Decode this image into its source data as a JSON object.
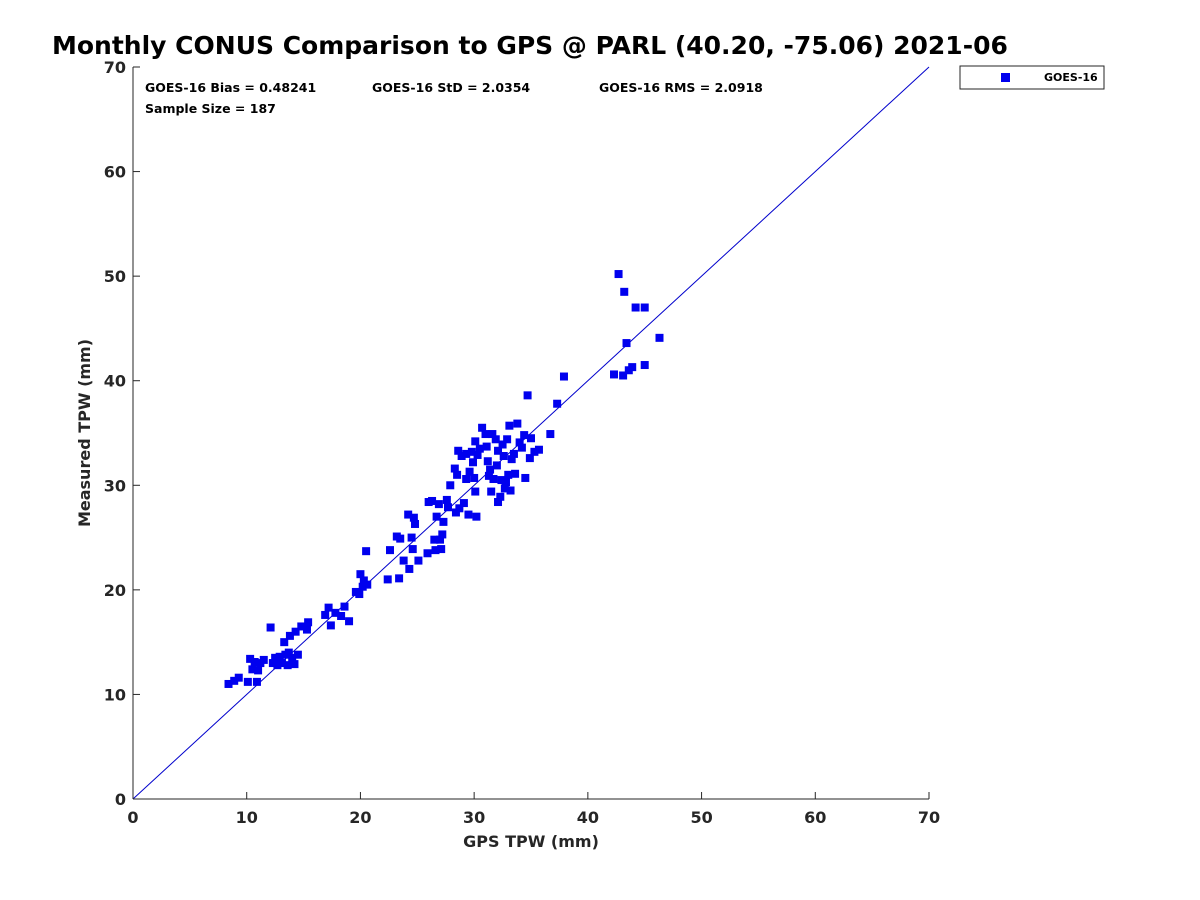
{
  "chart_data": {
    "type": "scatter",
    "title": "Monthly CONUS Comparison to GPS @ PARL (40.20, -75.06) 2021-06",
    "xlabel": "GPS TPW (mm)",
    "ylabel": "Measured TPW (mm)",
    "xlim": [
      0,
      70
    ],
    "ylim": [
      0,
      70
    ],
    "xticks": [
      "0",
      "10",
      "20",
      "30",
      "40",
      "50",
      "60",
      "70"
    ],
    "yticks": [
      "0",
      "10",
      "20",
      "30",
      "40",
      "50",
      "60",
      "70"
    ],
    "grid": false,
    "legend_position": "outside-top-right",
    "stats": {
      "bias": "GOES-16 Bias = 0.48241",
      "std": "GOES-16 StD = 2.0354",
      "rms": "GOES-16 RMS = 2.0918",
      "sample": "Sample Size = 187"
    },
    "reference_line": {
      "x": [
        0,
        70
      ],
      "y": [
        0,
        70
      ],
      "color": "#0000cc"
    },
    "series": [
      {
        "name": "GOES-16",
        "color": "#0000ee",
        "marker": "square",
        "points": [
          [
            8.4,
            11.0
          ],
          [
            8.9,
            11.3
          ],
          [
            9.3,
            11.6
          ],
          [
            10.1,
            11.2
          ],
          [
            10.3,
            13.4
          ],
          [
            10.5,
            12.4
          ],
          [
            10.7,
            13.1
          ],
          [
            10.9,
            11.2
          ],
          [
            11.0,
            12.3
          ],
          [
            11.2,
            13.0
          ],
          [
            11.5,
            13.3
          ],
          [
            12.1,
            16.4
          ],
          [
            12.3,
            13.0
          ],
          [
            12.5,
            13.5
          ],
          [
            12.7,
            12.8
          ],
          [
            12.9,
            13.6
          ],
          [
            13.1,
            13.0
          ],
          [
            13.3,
            15.0
          ],
          [
            13.4,
            13.8
          ],
          [
            13.6,
            12.8
          ],
          [
            13.7,
            14.0
          ],
          [
            13.8,
            15.6
          ],
          [
            14.0,
            13.5
          ],
          [
            14.2,
            12.9
          ],
          [
            14.3,
            16.0
          ],
          [
            14.5,
            13.8
          ],
          [
            14.8,
            16.5
          ],
          [
            15.3,
            16.2
          ],
          [
            15.4,
            16.9
          ],
          [
            16.9,
            17.6
          ],
          [
            17.2,
            18.3
          ],
          [
            17.4,
            16.6
          ],
          [
            17.8,
            17.8
          ],
          [
            18.3,
            17.5
          ],
          [
            18.6,
            18.4
          ],
          [
            19.0,
            17.0
          ],
          [
            19.6,
            19.8
          ],
          [
            19.9,
            19.6
          ],
          [
            20.0,
            21.5
          ],
          [
            20.2,
            20.3
          ],
          [
            20.3,
            20.9
          ],
          [
            20.5,
            23.7
          ],
          [
            20.6,
            20.5
          ],
          [
            22.4,
            21.0
          ],
          [
            22.6,
            23.8
          ],
          [
            23.2,
            25.1
          ],
          [
            23.4,
            21.1
          ],
          [
            23.5,
            24.9
          ],
          [
            23.8,
            22.8
          ],
          [
            24.2,
            27.2
          ],
          [
            24.3,
            22.0
          ],
          [
            24.5,
            25.0
          ],
          [
            24.6,
            23.9
          ],
          [
            24.7,
            26.9
          ],
          [
            24.8,
            26.3
          ],
          [
            25.1,
            22.8
          ],
          [
            25.9,
            23.5
          ],
          [
            26.0,
            28.4
          ],
          [
            26.3,
            28.5
          ],
          [
            26.5,
            24.8
          ],
          [
            26.6,
            23.8
          ],
          [
            26.7,
            27.0
          ],
          [
            26.9,
            28.2
          ],
          [
            27.0,
            24.8
          ],
          [
            27.1,
            23.9
          ],
          [
            27.2,
            25.3
          ],
          [
            27.3,
            26.5
          ],
          [
            27.6,
            28.6
          ],
          [
            27.7,
            27.9
          ],
          [
            27.9,
            30.0
          ],
          [
            28.3,
            31.6
          ],
          [
            28.4,
            27.4
          ],
          [
            28.5,
            31.0
          ],
          [
            28.6,
            33.3
          ],
          [
            28.7,
            27.8
          ],
          [
            28.9,
            32.8
          ],
          [
            29.1,
            28.3
          ],
          [
            29.3,
            30.6
          ],
          [
            29.3,
            33.0
          ],
          [
            29.5,
            27.2
          ],
          [
            29.6,
            31.3
          ],
          [
            29.8,
            33.2
          ],
          [
            29.9,
            32.2
          ],
          [
            30.0,
            30.7
          ],
          [
            30.1,
            29.4
          ],
          [
            30.1,
            34.2
          ],
          [
            30.2,
            27.0
          ],
          [
            30.3,
            32.9
          ],
          [
            30.5,
            33.5
          ],
          [
            30.7,
            35.5
          ],
          [
            31.0,
            34.9
          ],
          [
            31.1,
            33.7
          ],
          [
            31.2,
            32.3
          ],
          [
            31.3,
            30.9
          ],
          [
            31.4,
            31.5
          ],
          [
            31.5,
            29.4
          ],
          [
            31.6,
            34.9
          ],
          [
            31.7,
            30.6
          ],
          [
            31.9,
            34.4
          ],
          [
            32.0,
            31.9
          ],
          [
            32.1,
            33.3
          ],
          [
            32.1,
            28.4
          ],
          [
            32.3,
            28.9
          ],
          [
            32.4,
            30.5
          ],
          [
            32.5,
            33.9
          ],
          [
            32.6,
            32.8
          ],
          [
            32.7,
            29.7
          ],
          [
            32.8,
            30.3
          ],
          [
            32.9,
            34.4
          ],
          [
            33.0,
            31.0
          ],
          [
            33.1,
            35.7
          ],
          [
            33.2,
            29.5
          ],
          [
            33.3,
            32.5
          ],
          [
            33.5,
            33.0
          ],
          [
            33.6,
            31.1
          ],
          [
            33.8,
            35.9
          ],
          [
            34.0,
            34.1
          ],
          [
            34.2,
            33.6
          ],
          [
            34.4,
            34.8
          ],
          [
            34.5,
            30.7
          ],
          [
            34.7,
            38.6
          ],
          [
            34.9,
            32.6
          ],
          [
            35.0,
            34.5
          ],
          [
            35.3,
            33.2
          ],
          [
            35.7,
            33.4
          ],
          [
            36.7,
            34.9
          ],
          [
            37.3,
            37.8
          ],
          [
            37.9,
            40.4
          ],
          [
            42.3,
            40.6
          ],
          [
            42.7,
            50.2
          ],
          [
            43.1,
            40.5
          ],
          [
            43.2,
            48.5
          ],
          [
            43.4,
            43.6
          ],
          [
            43.6,
            41.0
          ],
          [
            43.9,
            41.3
          ],
          [
            44.2,
            47.0
          ],
          [
            45.0,
            47.0
          ],
          [
            45.0,
            41.5
          ],
          [
            46.3,
            44.1
          ]
        ]
      }
    ]
  },
  "legend": {
    "label": "GOES-16"
  }
}
